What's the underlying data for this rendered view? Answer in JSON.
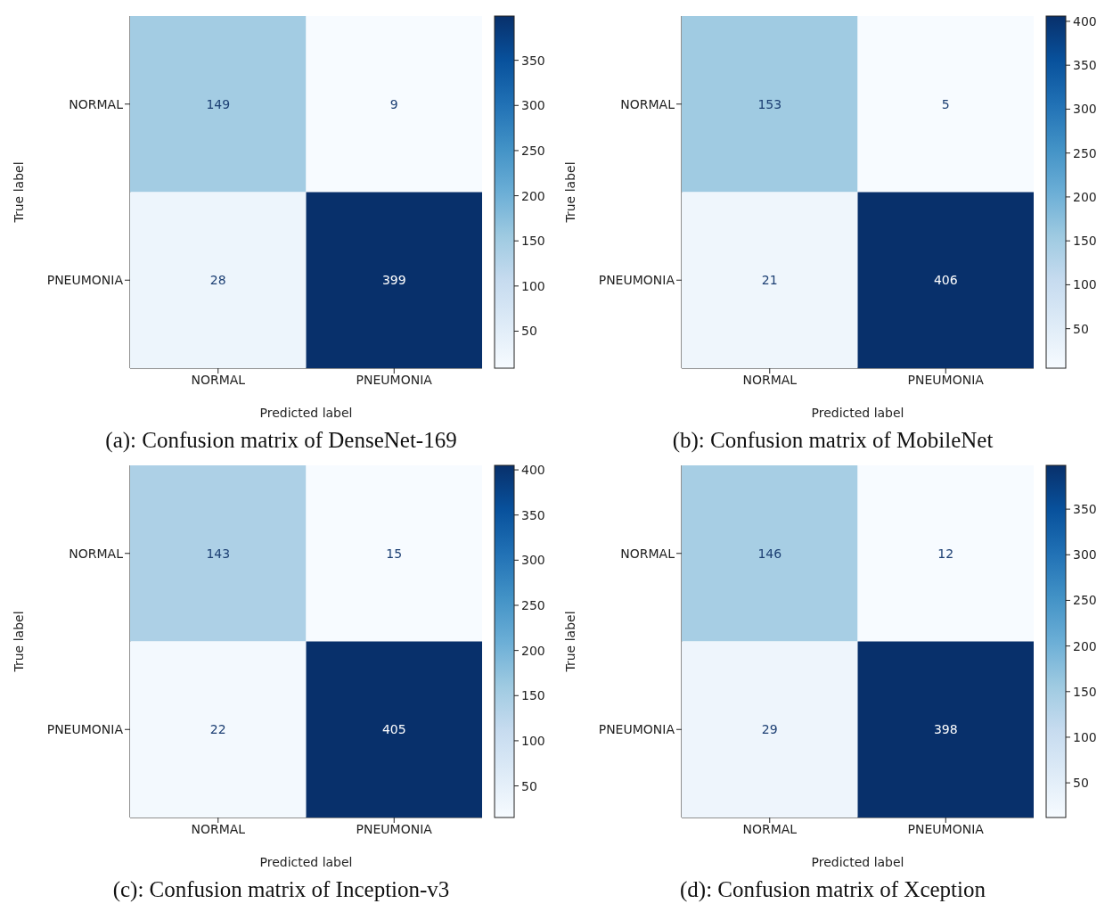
{
  "chart_data": [
    {
      "type": "heatmap",
      "title": "(a): Confusion matrix of DenseNet-169",
      "xlabel": "Predicted label",
      "ylabel": "True label",
      "categories": [
        "NORMAL",
        "PNEUMONIA"
      ],
      "y_categories": [
        "NORMAL",
        "PNEUMONIA"
      ],
      "cells": [
        [
          149,
          9
        ],
        [
          28,
          399
        ]
      ],
      "data_labels": true,
      "clim": [
        9,
        399
      ],
      "cticks": [
        50,
        100,
        150,
        200,
        250,
        300,
        350
      ]
    },
    {
      "type": "heatmap",
      "title": "(b): Confusion matrix of MobileNet",
      "xlabel": "Predicted label",
      "ylabel": "True label",
      "categories": [
        "NORMAL",
        "PNEUMONIA"
      ],
      "y_categories": [
        "NORMAL",
        "PNEUMONIA"
      ],
      "cells": [
        [
          153,
          5
        ],
        [
          21,
          406
        ]
      ],
      "data_labels": true,
      "clim": [
        5,
        406
      ],
      "cticks": [
        50,
        100,
        150,
        200,
        250,
        300,
        350,
        400
      ]
    },
    {
      "type": "heatmap",
      "title": "(c): Confusion matrix of Inception-v3",
      "xlabel": "Predicted label",
      "ylabel": "True label",
      "categories": [
        "NORMAL",
        "PNEUMONIA"
      ],
      "y_categories": [
        "NORMAL",
        "PNEUMONIA"
      ],
      "cells": [
        [
          143,
          15
        ],
        [
          22,
          405
        ]
      ],
      "data_labels": true,
      "clim": [
        15,
        405
      ],
      "cticks": [
        50,
        100,
        150,
        200,
        250,
        300,
        350,
        400
      ]
    },
    {
      "type": "heatmap",
      "title": "(d): Confusion matrix of Xception",
      "xlabel": "Predicted label",
      "ylabel": "True label",
      "categories": [
        "NORMAL",
        "PNEUMONIA"
      ],
      "y_categories": [
        "NORMAL",
        "PNEUMONIA"
      ],
      "cells": [
        [
          146,
          12
        ],
        [
          29,
          398
        ]
      ],
      "data_labels": true,
      "clim": [
        12,
        398
      ],
      "cticks": [
        50,
        100,
        150,
        200,
        250,
        300,
        350
      ]
    }
  ]
}
